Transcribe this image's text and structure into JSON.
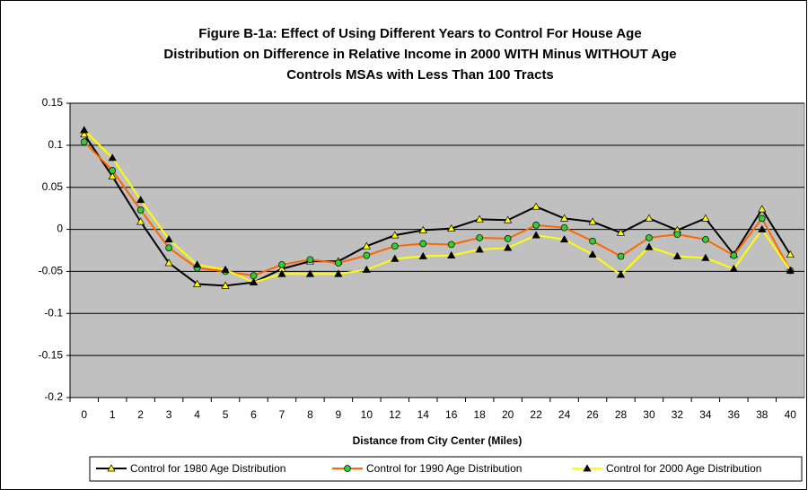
{
  "chart_data": {
    "type": "line",
    "title": [
      "Figure B-1a: Effect of Using Different Years to Control For House Age",
      "Distribution on Difference in Relative Income in 2000 WITH Minus WITHOUT Age",
      "Controls MSAs with Less Than 100 Tracts"
    ],
    "x_label": "Distance from City Center (Miles)",
    "categories": [
      0,
      1,
      2,
      3,
      4,
      5,
      6,
      7,
      8,
      9,
      10,
      12,
      14,
      16,
      18,
      20,
      22,
      24,
      26,
      28,
      30,
      32,
      34,
      36,
      38,
      40
    ],
    "ylim": [
      -0.2,
      0.15
    ],
    "yticks": [
      -0.2,
      -0.15,
      -0.1,
      -0.05,
      0,
      0.05,
      0.1,
      0.15
    ],
    "grid": true,
    "series": [
      {
        "name": "Control for 1980 Age Distribution",
        "color": "#000000",
        "marker_color": "#ffff00",
        "values": [
          0.113,
          0.063,
          0.009,
          -0.04,
          -0.065,
          -0.067,
          -0.063,
          -0.047,
          -0.038,
          -0.038,
          -0.02,
          -0.007,
          -0.001,
          0.001,
          0.012,
          0.011,
          0.027,
          0.013,
          0.009,
          -0.004,
          0.013,
          -0.001,
          0.013,
          -0.03,
          0.024,
          -0.03
        ]
      },
      {
        "name": "Control for 1990 Age Distribution",
        "color": "#ff6600",
        "marker_color": "#33cc33",
        "values": [
          0.104,
          0.07,
          0.023,
          -0.022,
          -0.046,
          -0.05,
          -0.055,
          -0.042,
          -0.036,
          -0.04,
          -0.031,
          -0.02,
          -0.017,
          -0.018,
          -0.01,
          -0.011,
          0.005,
          0.002,
          -0.014,
          -0.032,
          -0.01,
          -0.006,
          -0.012,
          -0.031,
          0.013,
          -0.049
        ]
      },
      {
        "name": "Control for 2000 Age Distribution",
        "color": "#ffff00",
        "marker_color": "#000000",
        "values": [
          0.118,
          0.085,
          0.035,
          -0.012,
          -0.042,
          -0.048,
          -0.063,
          -0.053,
          -0.053,
          -0.053,
          -0.048,
          -0.035,
          -0.032,
          -0.031,
          -0.024,
          -0.022,
          -0.007,
          -0.012,
          -0.03,
          -0.054,
          -0.021,
          -0.032,
          -0.034,
          -0.047,
          0.0,
          -0.049
        ]
      }
    ]
  }
}
